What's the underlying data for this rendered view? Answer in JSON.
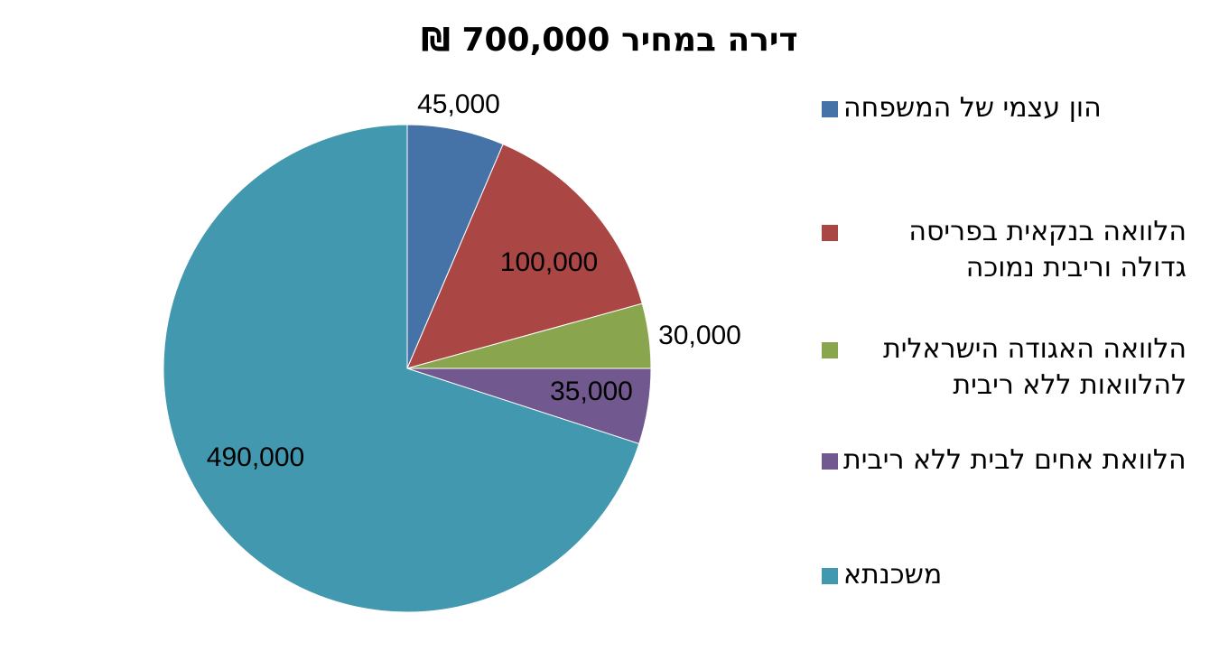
{
  "chart_data": {
    "type": "pie",
    "title": "דירה במחיר 700,000 ₪",
    "categories": [
      "הון עצמי של המשפחה",
      "הלוואה בנקאית בפריסה גדולה וריבית נמוכה",
      "הלוואה האגודה הישראלית להלוואות ללא ריבית",
      "הלוואת אחים לבית ללא ריבית",
      "משכנתא"
    ],
    "values": [
      45000,
      100000,
      30000,
      35000,
      490000
    ],
    "value_labels": [
      "45,000",
      "100,000",
      "30,000",
      "35,000",
      "490,000"
    ],
    "colors": [
      "#4572a7",
      "#aa4643",
      "#89a54e",
      "#71588f",
      "#4198af"
    ],
    "legend": "right"
  }
}
